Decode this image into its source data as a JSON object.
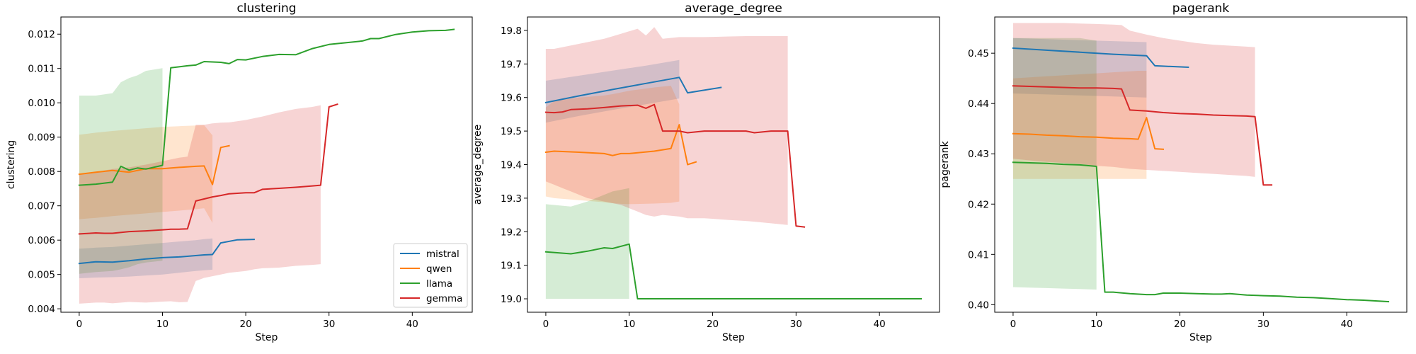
{
  "chart_data": [
    {
      "type": "line",
      "title": "clustering",
      "xlabel": "Step",
      "ylabel": "clustering",
      "xlim": [
        -2.2,
        47.2
      ],
      "ylim": [
        0.0039,
        0.0125
      ],
      "xticks": [
        0,
        10,
        20,
        30,
        40
      ],
      "xtick_labels": [
        "0",
        "10",
        "20",
        "30",
        "40"
      ],
      "yticks": [
        0.004,
        0.005,
        0.006,
        0.007,
        0.008,
        0.009,
        0.01,
        0.011,
        0.012
      ],
      "ytick_labels": [
        "0.004",
        "0.005",
        "0.006",
        "0.007",
        "0.008",
        "0.009",
        "0.010",
        "0.011",
        "0.012"
      ],
      "grid": false,
      "legend": {
        "placement": "lower-right",
        "entries": [
          "mistral",
          "qwen",
          "llama",
          "gemma"
        ]
      },
      "series": [
        {
          "name": "mistral",
          "color": "#1f77b4",
          "x": [
            0,
            2,
            4,
            6,
            8,
            10,
            12,
            14,
            15,
            16,
            17,
            19,
            21
          ],
          "y": [
            0.00532,
            0.00537,
            0.00536,
            0.0054,
            0.00545,
            0.00549,
            0.00551,
            0.00555,
            0.00557,
            0.00558,
            0.00592,
            0.00601,
            0.00602
          ],
          "band_lower": [
            0.00489,
            0.00491,
            0.00492,
            0.00494,
            0.00497,
            0.005,
            0.00505,
            0.0051,
            0.00512,
            0.00514
          ],
          "band_upper": [
            0.00575,
            0.00578,
            0.0058,
            0.00584,
            0.00588,
            0.00592,
            0.00596,
            0.006,
            0.00603,
            0.00605
          ]
        },
        {
          "name": "qwen",
          "color": "#ff7f0e",
          "x": [
            0,
            2,
            4,
            6,
            8,
            10,
            12,
            14,
            15,
            16,
            17,
            18
          ],
          "y": [
            0.00792,
            0.00798,
            0.00803,
            0.00798,
            0.00808,
            0.00808,
            0.00812,
            0.00815,
            0.00816,
            0.00762,
            0.0087,
            0.00875
          ],
          "band_lower": [
            0.00661,
            0.00665,
            0.0067,
            0.00674,
            0.00678,
            0.00682,
            0.00686,
            0.0069,
            0.00693,
            0.0065
          ],
          "band_upper": [
            0.00907,
            0.00913,
            0.00918,
            0.00922,
            0.00926,
            0.0093,
            0.00932,
            0.00934,
            0.00935,
            0.00905
          ]
        },
        {
          "name": "llama",
          "color": "#2ca02c",
          "x": [
            0,
            2,
            4,
            5,
            6,
            7,
            8,
            10,
            11,
            13,
            14,
            15,
            17,
            18,
            19,
            20,
            22,
            24,
            26,
            28,
            30,
            32,
            34,
            35,
            36,
            38,
            40,
            42,
            44,
            45
          ],
          "y": [
            0.0076,
            0.00763,
            0.00769,
            0.00815,
            0.00804,
            0.0081,
            0.00807,
            0.00818,
            0.01102,
            0.01108,
            0.0111,
            0.0112,
            0.01118,
            0.01114,
            0.01126,
            0.01125,
            0.01135,
            0.01141,
            0.0114,
            0.01158,
            0.0117,
            0.01175,
            0.0118,
            0.01187,
            0.01187,
            0.01199,
            0.01206,
            0.0121,
            0.01211,
            0.01214
          ],
          "band_lower": [
            0.00502,
            0.00507,
            0.0051,
            0.00515,
            0.00521,
            0.0053,
            0.00535,
            0.0054
          ],
          "band_upper": [
            0.01021,
            0.01021,
            0.01028,
            0.0106,
            0.01072,
            0.0108,
            0.01093,
            0.01101
          ]
        },
        {
          "name": "gemma",
          "color": "#d62728",
          "x": [
            0,
            2,
            3,
            4,
            6,
            8,
            10,
            11,
            12,
            13,
            14,
            15,
            16,
            17,
            18,
            20,
            21,
            22,
            24,
            26,
            28,
            29,
            30,
            31
          ],
          "y": [
            0.00618,
            0.00621,
            0.0062,
            0.0062,
            0.00625,
            0.00627,
            0.0063,
            0.00632,
            0.00632,
            0.00633,
            0.00714,
            0.0072,
            0.00726,
            0.0073,
            0.00735,
            0.00738,
            0.00738,
            0.00748,
            0.00751,
            0.00754,
            0.00758,
            0.0076,
            0.00988,
            0.00996
          ],
          "band_lower": [
            0.00415,
            0.00418,
            0.00418,
            0.00416,
            0.0042,
            0.00418,
            0.00421,
            0.00422,
            0.00419,
            0.0042,
            0.00481,
            0.0049,
            0.00495,
            0.005,
            0.00505,
            0.0051,
            0.00515,
            0.00518,
            0.0052,
            0.00525,
            0.00528,
            0.0053
          ],
          "band_upper": [
            0.0079,
            0.00799,
            0.00803,
            0.00807,
            0.00812,
            0.0082,
            0.0083,
            0.00835,
            0.0084,
            0.00843,
            0.00936,
            0.00936,
            0.0094,
            0.00942,
            0.00943,
            0.0095,
            0.00955,
            0.0096,
            0.00972,
            0.00982,
            0.00988,
            0.00993
          ]
        }
      ]
    },
    {
      "type": "line",
      "title": "average_degree",
      "xlabel": "Step",
      "ylabel": "average_degree",
      "xlim": [
        -2.2,
        47.2
      ],
      "ylim": [
        18.96,
        19.84
      ],
      "xticks": [
        0,
        10,
        20,
        30,
        40
      ],
      "xtick_labels": [
        "0",
        "10",
        "20",
        "30",
        "40"
      ],
      "yticks": [
        19.0,
        19.1,
        19.2,
        19.3,
        19.4,
        19.5,
        19.6,
        19.7,
        19.8
      ],
      "ytick_labels": [
        "19.0",
        "19.1",
        "19.2",
        "19.3",
        "19.4",
        "19.5",
        "19.6",
        "19.7",
        "19.8"
      ],
      "grid": false,
      "series": [
        {
          "name": "mistral",
          "color": "#1f77b4",
          "x": [
            0,
            4,
            8,
            12,
            16,
            17,
            21
          ],
          "y": [
            19.585,
            19.605,
            19.624,
            19.642,
            19.66,
            19.614,
            19.63
          ],
          "band_lower": [
            19.525,
            19.545,
            19.563,
            19.58,
            19.597
          ],
          "band_upper": [
            19.65,
            19.665,
            19.68,
            19.695,
            19.712
          ]
        },
        {
          "name": "qwen",
          "color": "#ff7f0e",
          "x": [
            0,
            1,
            4,
            7,
            8,
            9,
            10,
            13,
            15,
            16,
            17,
            18
          ],
          "y": [
            19.437,
            19.44,
            19.437,
            19.433,
            19.427,
            19.433,
            19.433,
            19.44,
            19.448,
            19.519,
            19.4,
            19.408
          ],
          "band_lower": [
            19.305,
            19.3,
            19.294,
            19.288,
            19.285,
            19.283,
            19.282,
            19.284,
            19.286,
            19.29
          ],
          "band_upper": [
            19.57,
            19.59,
            19.6,
            19.606,
            19.61,
            19.615,
            19.62,
            19.63,
            19.635,
            19.58
          ]
        },
        {
          "name": "llama",
          "color": "#2ca02c",
          "x": [
            0,
            3,
            5,
            7,
            8,
            10,
            11,
            45
          ],
          "y": [
            19.14,
            19.134,
            19.142,
            19.152,
            19.15,
            19.163,
            19.0,
            19.0
          ],
          "band_lower": [
            19.0,
            19.0,
            19.0,
            19.0,
            19.0,
            19.0
          ],
          "band_upper": [
            19.282,
            19.275,
            19.29,
            19.31,
            19.32,
            19.33
          ]
        },
        {
          "name": "gemma",
          "color": "#d62728",
          "x": [
            0,
            1,
            2,
            3,
            5,
            7,
            9,
            11,
            12,
            13,
            14,
            16,
            17,
            19,
            22,
            24,
            25,
            27,
            29,
            30,
            31
          ],
          "y": [
            19.556,
            19.555,
            19.557,
            19.564,
            19.566,
            19.57,
            19.575,
            19.577,
            19.568,
            19.579,
            19.5,
            19.5,
            19.495,
            19.5,
            19.5,
            19.5,
            19.495,
            19.5,
            19.5,
            19.217,
            19.214
          ],
          "band_lower": [
            19.35,
            19.34,
            19.33,
            19.32,
            19.3,
            19.29,
            19.28,
            19.26,
            19.25,
            19.245,
            19.25,
            19.245,
            19.24,
            19.24,
            19.235,
            19.232,
            19.23,
            19.225,
            19.22
          ],
          "band_upper": [
            19.745,
            19.745,
            19.75,
            19.755,
            19.765,
            19.775,
            19.79,
            19.805,
            19.785,
            19.81,
            19.775,
            19.78,
            19.78,
            19.78,
            19.782,
            19.783,
            19.783,
            19.783,
            19.783
          ]
        }
      ]
    },
    {
      "type": "line",
      "title": "pagerank",
      "xlabel": "Step",
      "ylabel": "pagerank",
      "xlim": [
        -2.2,
        47.2
      ],
      "ylim": [
        0.3985,
        0.4572
      ],
      "xticks": [
        0,
        10,
        20,
        30,
        40
      ],
      "xtick_labels": [
        "0",
        "10",
        "20",
        "30",
        "40"
      ],
      "yticks": [
        0.4,
        0.41,
        0.42,
        0.43,
        0.44,
        0.45
      ],
      "ytick_labels": [
        "0.40",
        "0.41",
        "0.42",
        "0.43",
        "0.44",
        "0.45"
      ],
      "grid": false,
      "series": [
        {
          "name": "mistral",
          "color": "#1f77b4",
          "x": [
            0,
            4,
            8,
            12,
            16,
            17,
            21
          ],
          "y": [
            0.451,
            0.4506,
            0.4502,
            0.4498,
            0.4495,
            0.4475,
            0.4472
          ],
          "band_lower": [
            0.442,
            0.4418,
            0.4416,
            0.4414,
            0.4412
          ],
          "band_upper": [
            0.453,
            0.4528,
            0.4526,
            0.4524,
            0.4522
          ]
        },
        {
          "name": "qwen",
          "color": "#ff7f0e",
          "x": [
            0,
            2,
            4,
            6,
            8,
            10,
            12,
            14,
            15,
            16,
            17,
            18
          ],
          "y": [
            0.434,
            0.4339,
            0.4337,
            0.4336,
            0.4334,
            0.4333,
            0.4331,
            0.433,
            0.4329,
            0.4372,
            0.431,
            0.4309
          ],
          "band_lower": [
            0.425,
            0.425,
            0.425,
            0.425,
            0.425,
            0.425,
            0.425,
            0.425,
            0.425,
            0.425
          ],
          "band_upper": [
            0.445,
            0.4452,
            0.4454,
            0.4456,
            0.4458,
            0.446,
            0.4462,
            0.4464,
            0.4465,
            0.4465
          ]
        },
        {
          "name": "llama",
          "color": "#2ca02c",
          "x": [
            0,
            2,
            4,
            6,
            8,
            10,
            11,
            12,
            14,
            16,
            17,
            18,
            20,
            22,
            24,
            25,
            26,
            28,
            30,
            32,
            34,
            36,
            38,
            40,
            42,
            44,
            45
          ],
          "y": [
            0.4283,
            0.4282,
            0.4281,
            0.4279,
            0.4278,
            0.4275,
            0.4025,
            0.4025,
            0.4022,
            0.402,
            0.402,
            0.4023,
            0.4023,
            0.4022,
            0.4021,
            0.4021,
            0.4022,
            0.4019,
            0.4018,
            0.4017,
            0.4015,
            0.4014,
            0.4012,
            0.401,
            0.4009,
            0.4007,
            0.4006
          ],
          "band_lower": [
            0.4035,
            0.4034,
            0.4033,
            0.4032,
            0.4031,
            0.403
          ],
          "band_upper": [
            0.453,
            0.453,
            0.453,
            0.453,
            0.453,
            0.4525
          ]
        },
        {
          "name": "gemma",
          "color": "#d62728",
          "x": [
            0,
            2,
            4,
            6,
            8,
            10,
            12,
            13,
            14,
            16,
            18,
            20,
            22,
            24,
            26,
            28,
            29,
            30,
            31
          ],
          "y": [
            0.4435,
            0.4434,
            0.4433,
            0.4432,
            0.4431,
            0.4431,
            0.443,
            0.4429,
            0.4387,
            0.4385,
            0.4382,
            0.438,
            0.4379,
            0.4377,
            0.4376,
            0.4375,
            0.4374,
            0.4238,
            0.4238
          ],
          "band_lower": [
            0.429,
            0.4287,
            0.4284,
            0.4282,
            0.428,
            0.4276,
            0.4274,
            0.4272,
            0.427,
            0.4268,
            0.4266,
            0.4264,
            0.4262,
            0.426,
            0.4258,
            0.4256,
            0.4254
          ],
          "band_upper": [
            0.456,
            0.456,
            0.456,
            0.456,
            0.4559,
            0.4558,
            0.4557,
            0.4556,
            0.4545,
            0.4537,
            0.453,
            0.4525,
            0.452,
            0.4517,
            0.4515,
            0.4513,
            0.4512
          ]
        }
      ]
    }
  ]
}
